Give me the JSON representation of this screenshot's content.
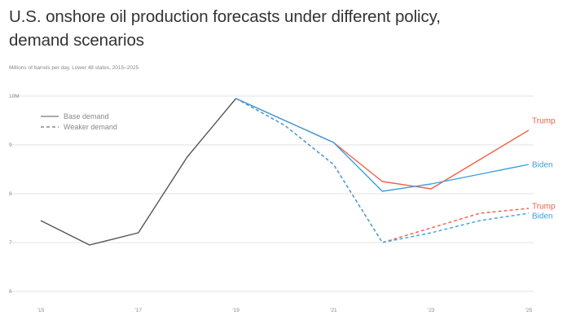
{
  "title": "U.S. onshore oil production forecasts under different policy, demand scenarios",
  "subtitle": "Millions of barrels per day, Lower 48 states, 2015–2025",
  "colors": {
    "trump": "#ef6048",
    "biden": "#3aa0dd",
    "history": "#555555",
    "grid": "#e3e3e3"
  },
  "chart_data": {
    "type": "line",
    "title": "U.S. onshore oil production forecasts under different policy, demand scenarios",
    "subtitle": "Millions of barrels per day, Lower 48 states, 2015–2025",
    "x": [
      2015,
      2016,
      2017,
      2018,
      2019,
      2020,
      2021,
      2022,
      2023,
      2024,
      2025
    ],
    "x_tick_labels": [
      "'15",
      "'17",
      "'19",
      "'21",
      "'23",
      "'25"
    ],
    "y_tick_labels": [
      "10M",
      "9",
      "8",
      "7",
      "6"
    ],
    "ylim": [
      6,
      10
    ],
    "grid": true,
    "legend": {
      "position": "top-left",
      "entries": [
        {
          "label": "Base demand",
          "style": "solid"
        },
        {
          "label": "Weaker demand",
          "style": "dashed"
        }
      ]
    },
    "series": [
      {
        "group": "history",
        "style": "solid",
        "x": [
          2015,
          2016,
          2017,
          2018,
          2019
        ],
        "values": [
          7.45,
          6.95,
          7.2,
          8.75,
          9.95
        ]
      },
      {
        "name": "Trump",
        "group": "trump",
        "style": "solid",
        "x": [
          2019,
          2020,
          2021,
          2022,
          2023,
          2024,
          2025
        ],
        "values": [
          9.95,
          9.5,
          9.05,
          8.25,
          8.1,
          8.7,
          9.3
        ]
      },
      {
        "name": "Biden",
        "group": "biden",
        "style": "solid",
        "x": [
          2019,
          2020,
          2021,
          2022,
          2023,
          2024,
          2025
        ],
        "values": [
          9.95,
          9.5,
          9.05,
          8.05,
          8.2,
          8.4,
          8.6
        ]
      },
      {
        "name": "Trump",
        "group": "trump",
        "style": "dashed",
        "x": [
          2019,
          2020,
          2021,
          2022,
          2023,
          2024,
          2025
        ],
        "values": [
          9.95,
          9.4,
          8.6,
          7.0,
          7.3,
          7.6,
          7.7
        ]
      },
      {
        "name": "Biden",
        "group": "biden",
        "style": "dashed",
        "x": [
          2019,
          2020,
          2021,
          2022,
          2023,
          2024,
          2025
        ],
        "values": [
          9.95,
          9.4,
          8.6,
          7.0,
          7.2,
          7.45,
          7.6
        ]
      }
    ],
    "end_labels": [
      {
        "text": "Trump",
        "group": "trump",
        "value": 9.5
      },
      {
        "text": "Biden",
        "group": "biden",
        "value": 8.6
      },
      {
        "text": "Trump",
        "group": "trump",
        "value": 7.75
      },
      {
        "text": "Biden",
        "group": "biden",
        "value": 7.55
      }
    ]
  }
}
